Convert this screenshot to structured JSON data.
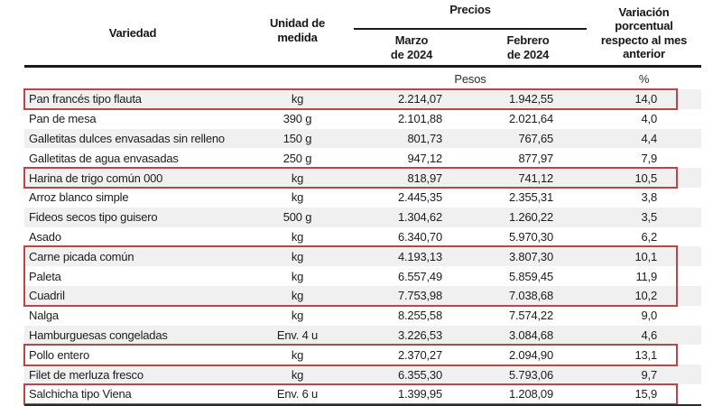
{
  "table": {
    "headers": {
      "variety": "Variedad",
      "unit": "Unidad de\nmedida",
      "prices": "Precios",
      "march": "Marzo\nde 2024",
      "feb": "Febrero\nde 2024",
      "variation": "Variación\nporcentual\nrespecto al mes\nanterior"
    },
    "unit_row": {
      "pesos": "Pesos",
      "pct": "%"
    },
    "rows": [
      {
        "variety": "Pan francés tipo flauta",
        "unit": "kg",
        "march": "2.214,07",
        "feb": "1.942,55",
        "variation": "14,0"
      },
      {
        "variety": "Pan de mesa",
        "unit": "390 g",
        "march": "2.101,88",
        "feb": "2.021,64",
        "variation": "4,0"
      },
      {
        "variety": "Galletitas dulces envasadas sin relleno",
        "unit": "150 g",
        "march": "801,73",
        "feb": "767,65",
        "variation": "4,4"
      },
      {
        "variety": "Galletitas de agua envasadas",
        "unit": "250 g",
        "march": "947,12",
        "feb": "877,97",
        "variation": "7,9"
      },
      {
        "variety": "Harina de trigo común 000",
        "unit": "kg",
        "march": "818,97",
        "feb": "741,12",
        "variation": "10,5"
      },
      {
        "variety": "Arroz blanco simple",
        "unit": "kg",
        "march": "2.445,35",
        "feb": "2.355,31",
        "variation": "3,8"
      },
      {
        "variety": "Fideos secos tipo guisero",
        "unit": "500 g",
        "march": "1.304,62",
        "feb": "1.260,22",
        "variation": "3,5"
      },
      {
        "variety": "Asado",
        "unit": "kg",
        "march": "6.340,70",
        "feb": "5.970,30",
        "variation": "6,2"
      },
      {
        "variety": "Carne picada común",
        "unit": "kg",
        "march": "4.193,13",
        "feb": "3.807,30",
        "variation": "10,1"
      },
      {
        "variety": "Paleta",
        "unit": "kg",
        "march": "6.557,49",
        "feb": "5.859,45",
        "variation": "11,9"
      },
      {
        "variety": "Cuadril",
        "unit": "kg",
        "march": "7.753,98",
        "feb": "7.038,68",
        "variation": "10,2"
      },
      {
        "variety": "Nalga",
        "unit": "kg",
        "march": "8.255,58",
        "feb": "7.574,22",
        "variation": "9,0"
      },
      {
        "variety": "Hamburguesas congeladas",
        "unit": "Env. 4 u",
        "march": "3.226,53",
        "feb": "3.084,68",
        "variation": "4,6"
      },
      {
        "variety": "Pollo entero",
        "unit": "kg",
        "march": "2.370,27",
        "feb": "2.094,90",
        "variation": "13,1"
      },
      {
        "variety": "Filet de merluza fresco",
        "unit": "kg",
        "march": "6.355,30",
        "feb": "5.793,06",
        "variation": "9,7"
      },
      {
        "variety": "Salchicha tipo Viena",
        "unit": "Env. 6 u",
        "march": "1.399,95",
        "feb": "1.208,09",
        "variation": "15,9"
      }
    ],
    "highlight_groups": [
      {
        "start": 1,
        "end": 1
      },
      {
        "start": 5,
        "end": 5
      },
      {
        "start": 9,
        "end": 11
      },
      {
        "start": 14,
        "end": 14
      },
      {
        "start": 16,
        "end": 16
      }
    ]
  },
  "colors": {
    "highlight_border": "#bb4649",
    "row_shade": "#f0f0f0",
    "text": "#1c1c1c",
    "rule": "#1a1a1a"
  }
}
